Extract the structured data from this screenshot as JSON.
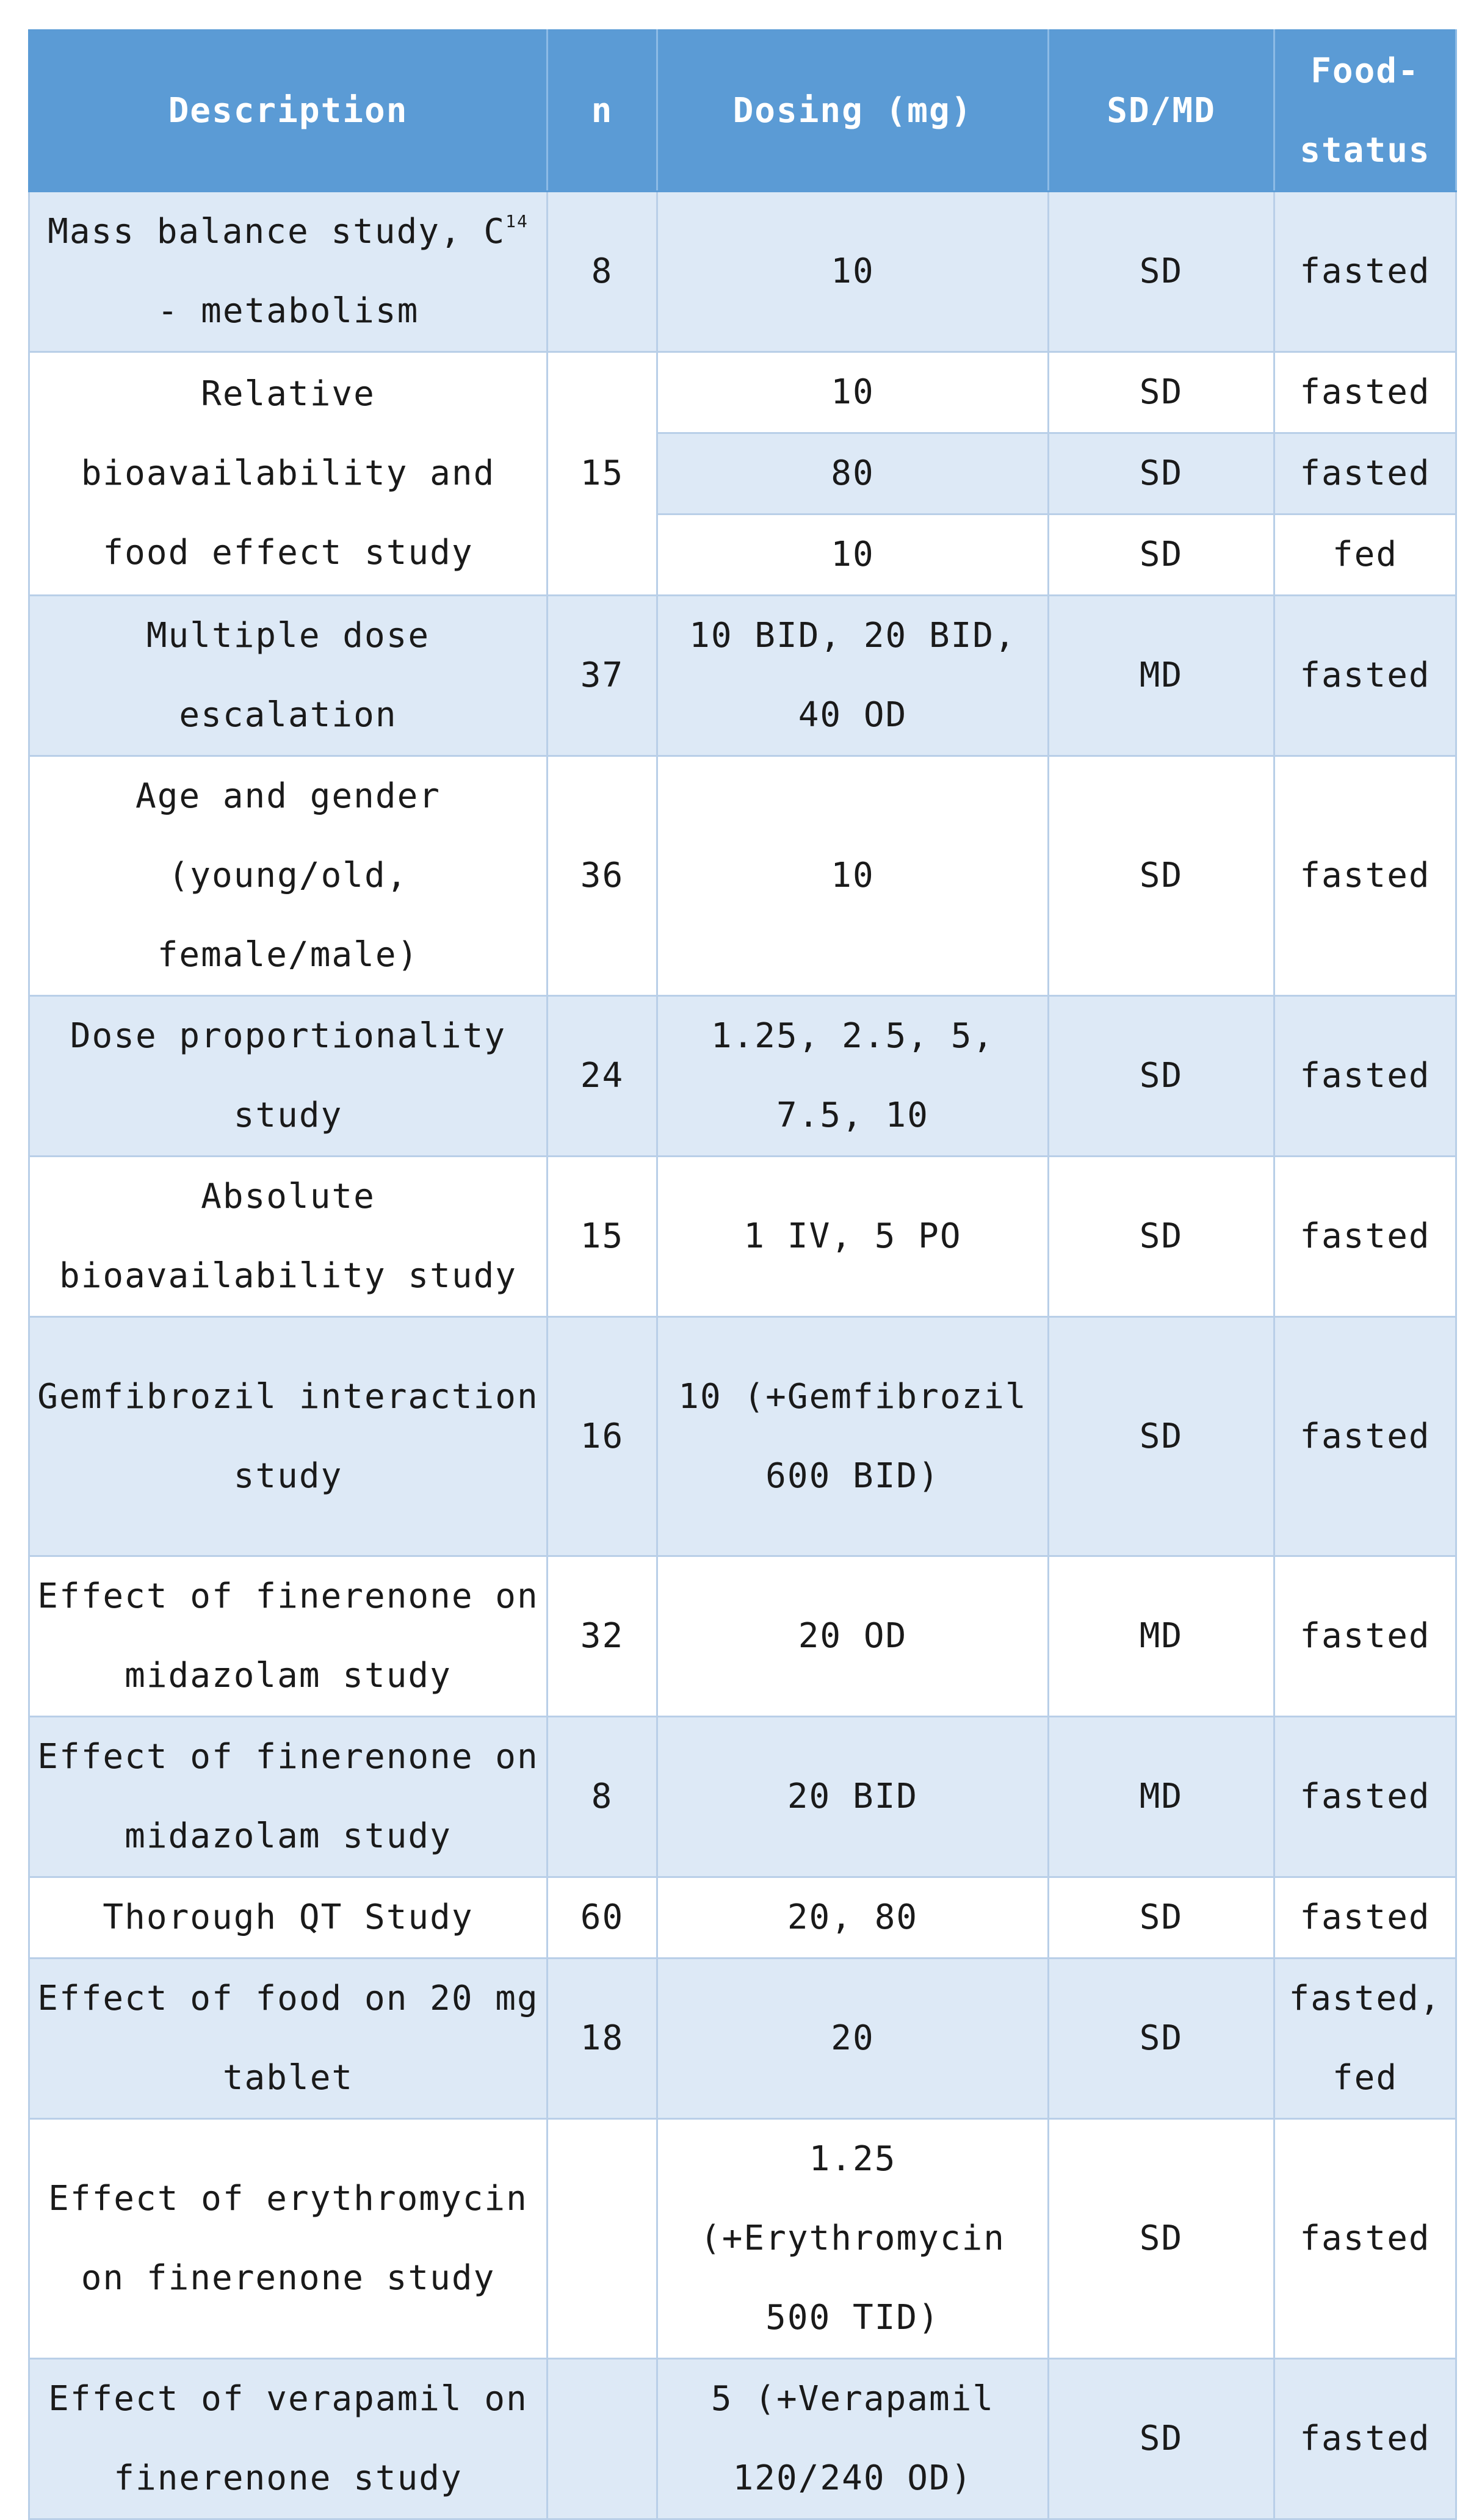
{
  "header": {
    "description": "Description",
    "n": "n",
    "dosing": "Dosing (mg)",
    "sd_md": "SD/MD",
    "food_status": "Food-status"
  },
  "rows": [
    {
      "description_pre": "Mass balance study, C",
      "description_sup": "14",
      "description_post": "- metabolism",
      "n": "8",
      "dosing": "10",
      "sd_md": "SD",
      "food": "fasted"
    },
    {
      "description": "Relative bioavailability and food effect study",
      "n": "15",
      "sub": [
        {
          "dosing": "10",
          "sd_md": "SD",
          "food": "fasted"
        },
        {
          "dosing": "80",
          "sd_md": "SD",
          "food": "fasted"
        },
        {
          "dosing": "10",
          "sd_md": "SD",
          "food": "fed"
        }
      ]
    },
    {
      "description": "Multiple dose escalation",
      "n": "37",
      "dosing": "10 BID, 20 BID, 40 OD",
      "sd_md": "MD",
      "food": "fasted"
    },
    {
      "description": "Age and gender (young/old, female/male)",
      "n": "36",
      "dosing": "10",
      "sd_md": "SD",
      "food": "fasted"
    },
    {
      "description": "Dose proportionality study",
      "n": "24",
      "dosing": "1.25, 2.5, 5, 7.5, 10",
      "sd_md": "SD",
      "food": "fasted"
    },
    {
      "description": "Absolute bioavailability study",
      "n": "15",
      "dosing": "1 IV, 5 PO",
      "sd_md": "SD",
      "food": "fasted"
    },
    {
      "description": "Gemfibrozil interaction study",
      "n": "16",
      "dosing": "10 (+Gemfibrozil 600 BID)",
      "sd_md": "SD",
      "food": "fasted"
    },
    {
      "description": "Effect of finerenone on midazolam study",
      "n": "32",
      "dosing": "20 OD",
      "sd_md": "MD",
      "food": "fasted"
    },
    {
      "description": "Effect of finerenone on midazolam study",
      "n": "8",
      "dosing": "20 BID",
      "sd_md": "MD",
      "food": "fasted"
    },
    {
      "description": "Thorough QT Study",
      "n": "60",
      "dosing": "20, 80",
      "sd_md": "SD",
      "food": "fasted"
    },
    {
      "description": "Effect of food on 20 mg tablet",
      "n": "18",
      "dosing": "20",
      "sd_md": "SD",
      "food": "fasted, fed"
    },
    {
      "description": "Effect of erythromycin on finerenone study",
      "n": "",
      "dosing": "1.25 (+Erythromycin 500 TID)",
      "sd_md": "SD",
      "food": "fasted"
    },
    {
      "description": "Effect of verapamil on finerenone study",
      "n": "",
      "dosing": "5 (+Verapamil 120/240 OD)",
      "sd_md": "SD",
      "food": "fasted"
    }
  ]
}
